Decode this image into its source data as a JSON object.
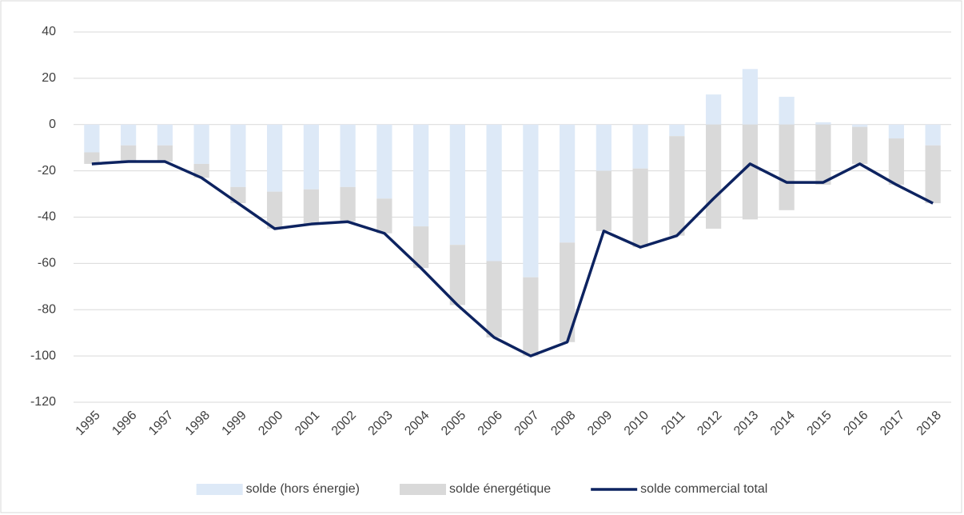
{
  "chart_data": {
    "type": "bar",
    "categories": [
      "1995",
      "1996",
      "1997",
      "1998",
      "1999",
      "2000",
      "2001",
      "2002",
      "2003",
      "2004",
      "2005",
      "2006",
      "2007",
      "2008",
      "2009",
      "2010",
      "2011",
      "2012",
      "2013",
      "2014",
      "2015",
      "2016",
      "2017",
      "2018"
    ],
    "series": [
      {
        "name": "solde (hors énergie)",
        "color": "#dde9f7",
        "type": "bar",
        "values": [
          -12,
          -9,
          -9,
          -17,
          -27,
          -29,
          -28,
          -27,
          -32,
          -44,
          -52,
          -59,
          -66,
          -51,
          -20,
          -19,
          -5,
          13,
          24,
          12,
          1,
          -1,
          -6,
          -9
        ]
      },
      {
        "name": "solde énergétique",
        "color": "#d9d9d9",
        "type": "bar",
        "values": [
          -5,
          -7,
          -7,
          -6,
          -7,
          -16,
          -15,
          -15,
          -15,
          -18,
          -26,
          -33,
          -34,
          -43,
          -26,
          -34,
          -43,
          -45,
          -41,
          -37,
          -26,
          -16,
          -20,
          -25
        ]
      },
      {
        "name": "solde commercial total",
        "color": "#0d2360",
        "type": "line",
        "values": [
          -17,
          -16,
          -16,
          -23,
          -34,
          -45,
          -43,
          -42,
          -47,
          -62,
          -78,
          -92,
          -100,
          -94,
          -46,
          -53,
          -48,
          -32,
          -17,
          -25,
          -25,
          -17,
          -26,
          -34
        ]
      }
    ],
    "ylim": [
      -120,
      40
    ],
    "yticks": [
      -120,
      -100,
      -80,
      -60,
      -40,
      -20,
      0,
      20,
      40
    ],
    "grid": true,
    "legend": "bottom"
  }
}
